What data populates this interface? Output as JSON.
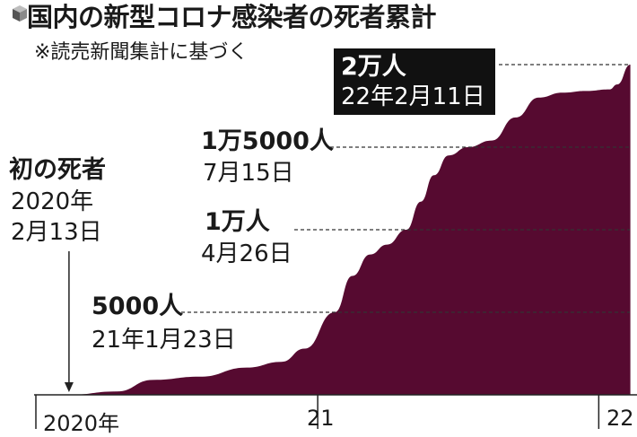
{
  "title": "国内の新型コロナ感染者の死者累計",
  "source": "※読売新聞集計に基づく",
  "icon": "cube-icon",
  "chart_data": {
    "type": "area",
    "color": "#560a30",
    "x_axis_ticks": [
      "2020年",
      "21",
      "22"
    ],
    "annotations": [
      {
        "value_label": "初の死者",
        "date_label_1": "2020年",
        "date_label_2": "2月13日",
        "x": "2020-02-13",
        "y": 1
      },
      {
        "value_label": "5000人",
        "date_label": "21年1月23日",
        "x": "2021-01-23",
        "y": 5000
      },
      {
        "value_label": "1万人",
        "date_label": "4月26日",
        "x": "2021-04-26",
        "y": 10000
      },
      {
        "value_label": "1万5000人",
        "date_label": "7月15日",
        "x": "2021-07-15",
        "y": 15000
      },
      {
        "value_label": "2万人",
        "date_label": "22年2月11日",
        "x": "2022-02-11",
        "y": 20000
      }
    ],
    "series": [
      {
        "values": [
          [
            "2020-02-13",
            1
          ],
          [
            "2020-04-15",
            200
          ],
          [
            "2020-06-01",
            900
          ],
          [
            "2020-08-01",
            1100
          ],
          [
            "2020-10-01",
            1650
          ],
          [
            "2020-11-15",
            2000
          ],
          [
            "2020-12-15",
            2800
          ],
          [
            "2021-01-23",
            5000
          ],
          [
            "2021-02-15",
            7200
          ],
          [
            "2021-03-10",
            8500
          ],
          [
            "2021-04-01",
            9100
          ],
          [
            "2021-04-26",
            10000
          ],
          [
            "2021-05-15",
            11700
          ],
          [
            "2021-06-01",
            13300
          ],
          [
            "2021-06-20",
            14500
          ],
          [
            "2021-07-15",
            15000
          ],
          [
            "2021-08-15",
            15400
          ],
          [
            "2021-09-15",
            16800
          ],
          [
            "2021-10-15",
            18000
          ],
          [
            "2021-11-15",
            18300
          ],
          [
            "2021-12-15",
            18400
          ],
          [
            "2022-01-15",
            18500
          ],
          [
            "2022-01-25",
            18800
          ],
          [
            "2022-02-11",
            20000
          ]
        ]
      }
    ]
  }
}
